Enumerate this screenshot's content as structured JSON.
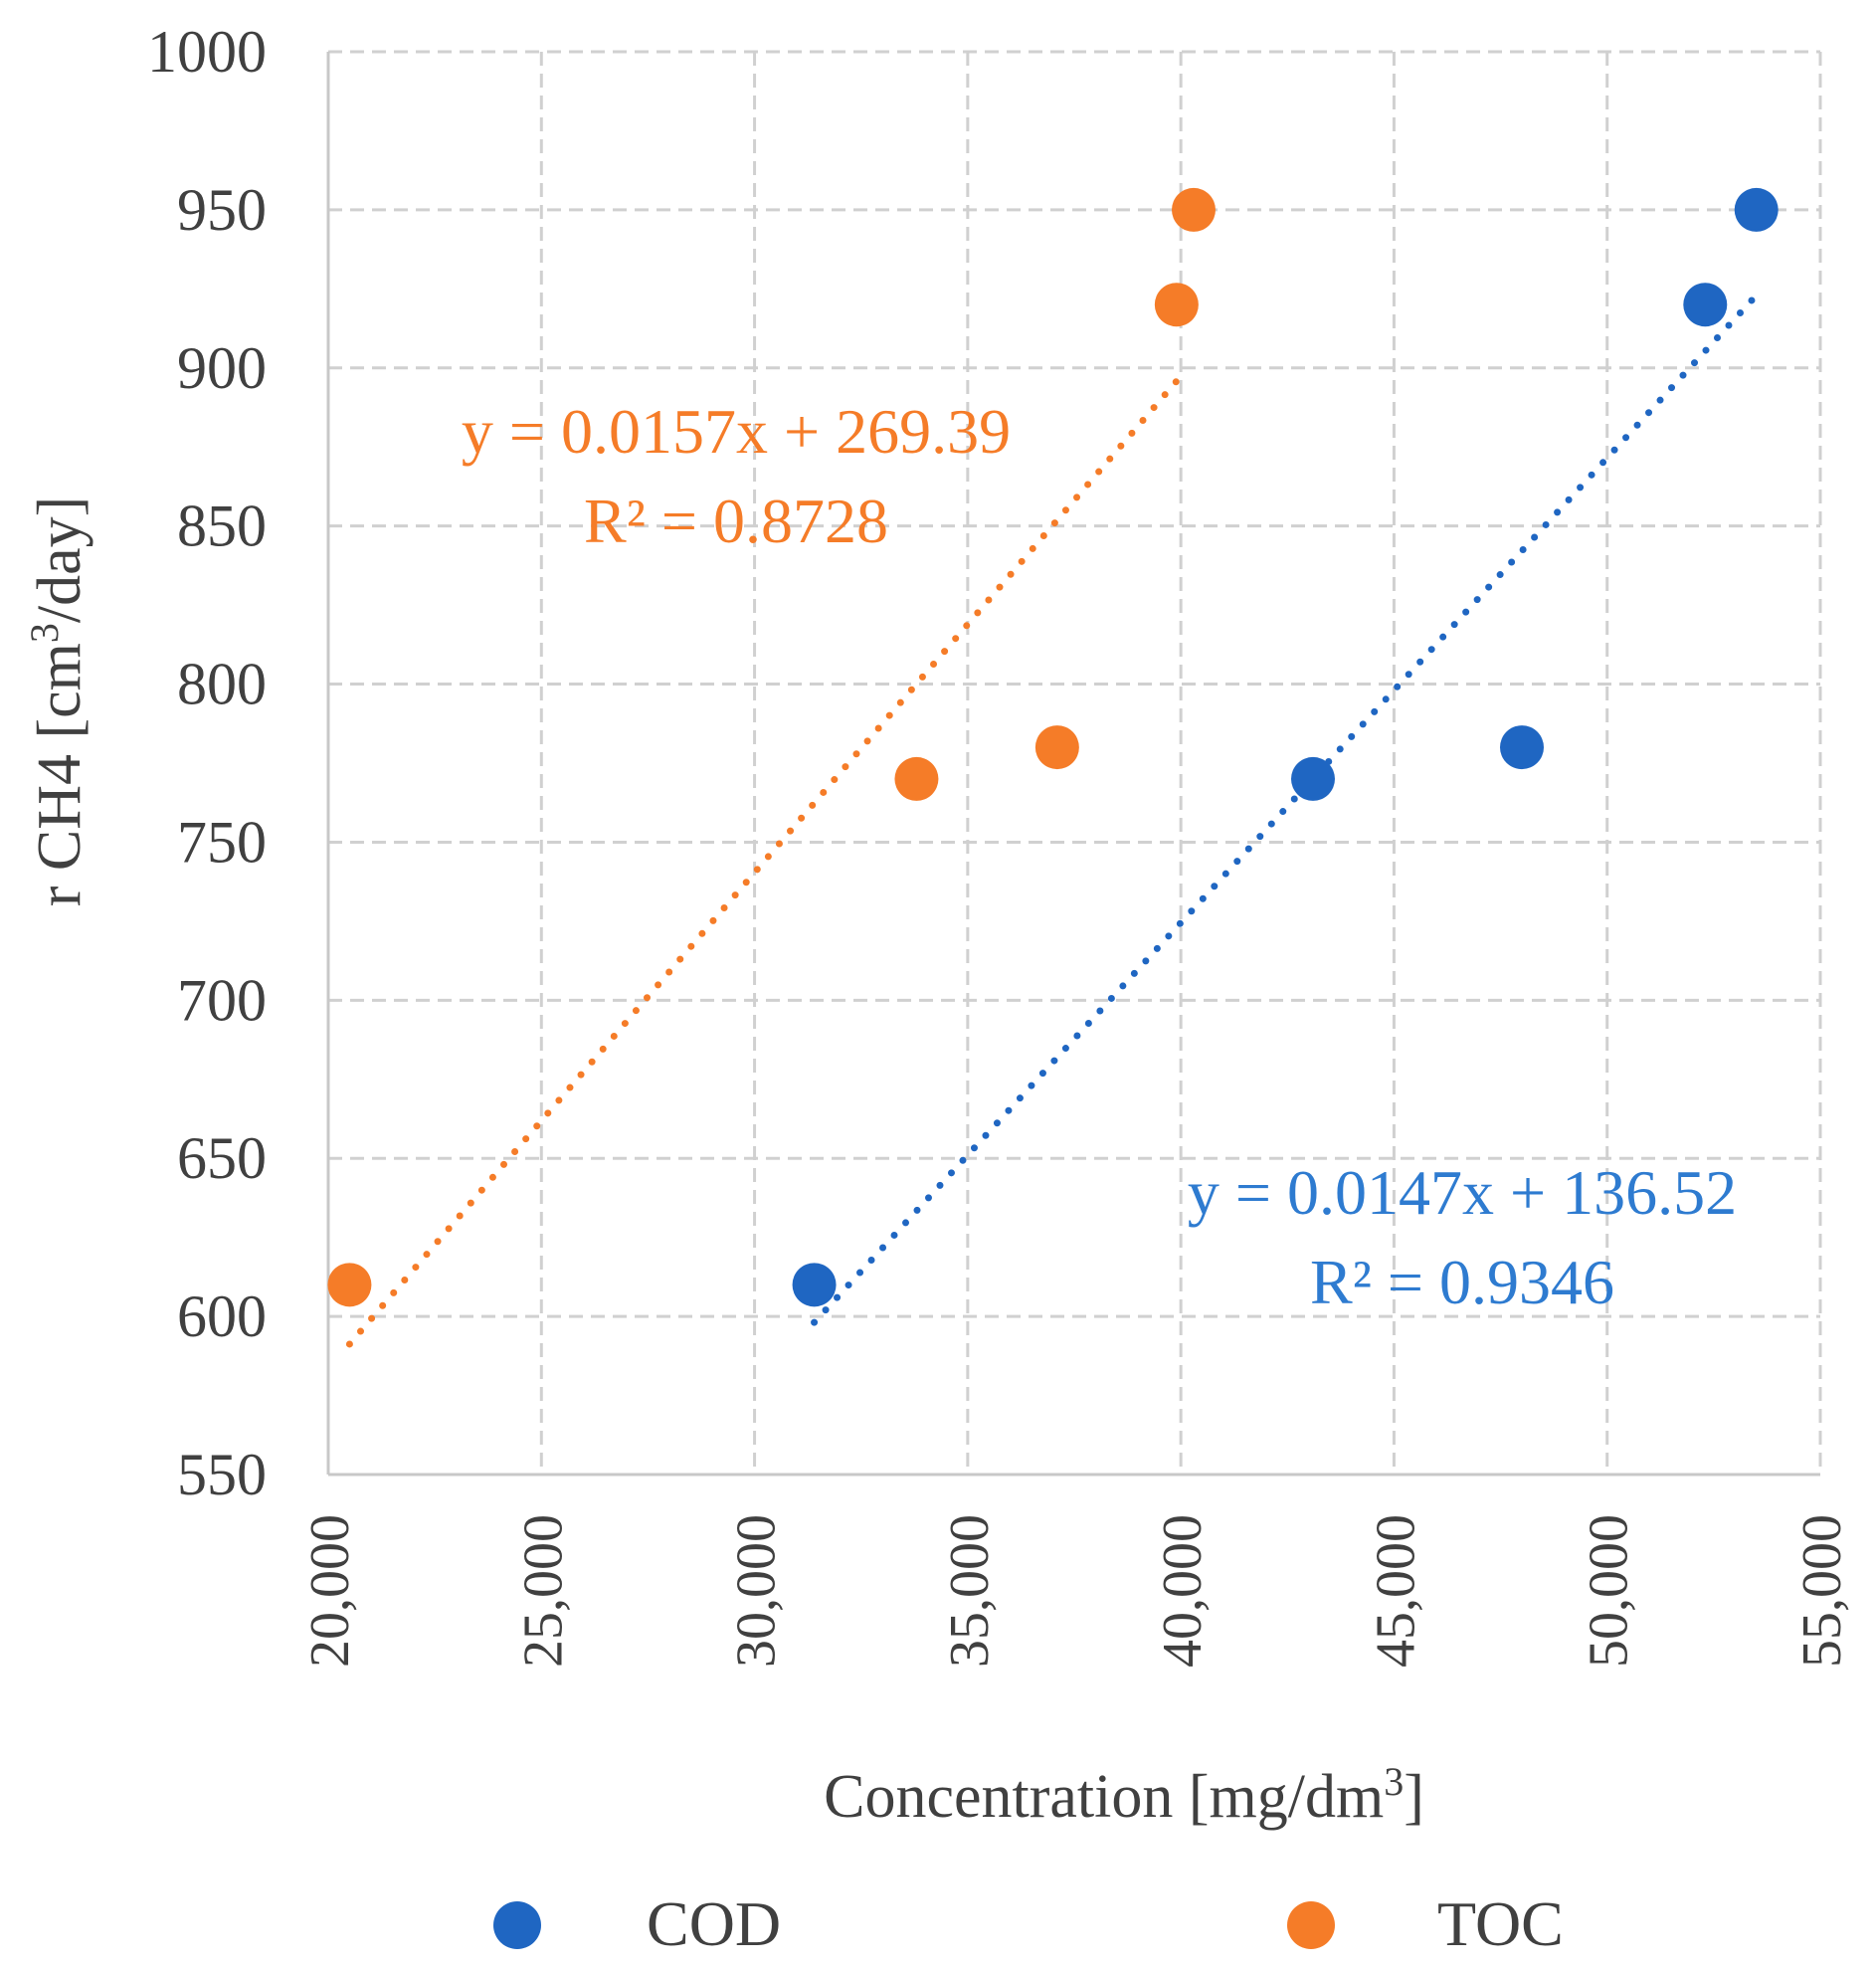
{
  "chart_data": {
    "type": "scatter",
    "title": "",
    "xlabel": "Concentration [mg/dm",
    "xlabel_sup": "3",
    "xlabel_end": "]",
    "ylabel": "r CH4 [cm",
    "ylabel_sup": "3",
    "ylabel_end": "/day]",
    "xlim": [
      20000,
      55000
    ],
    "ylim": [
      550,
      1000
    ],
    "x_ticks": [
      20000,
      25000,
      30000,
      35000,
      40000,
      45000,
      50000,
      55000
    ],
    "x_tick_labels": [
      "20,000",
      "25,000",
      "30,000",
      "35,000",
      "40,000",
      "45,000",
      "50,000",
      "55,000"
    ],
    "y_ticks": [
      550,
      600,
      650,
      700,
      750,
      800,
      850,
      900,
      950,
      1000
    ],
    "y_tick_labels": [
      "550",
      "600",
      "650",
      "700",
      "750",
      "800",
      "850",
      "900",
      "950",
      "1000"
    ],
    "grid": true,
    "legend_position": "bottom",
    "series": [
      {
        "name": "COD",
        "color": "#1f66c2",
        "points": [
          {
            "x": 31400,
            "y": 610
          },
          {
            "x": 43100,
            "y": 770
          },
          {
            "x": 48000,
            "y": 780
          },
          {
            "x": 52300,
            "y": 920
          },
          {
            "x": 53500,
            "y": 950
          }
        ],
        "trendline": {
          "slope": 0.0147,
          "intercept": 136.52,
          "x_range": [
            31400,
            53500
          ]
        },
        "equation": "y = 0.0147x + 136.52",
        "r2": "R² = 0.9346",
        "equation_color": "#2e7bd0"
      },
      {
        "name": "TOC",
        "color": "#f57c28",
        "points": [
          {
            "x": 20500,
            "y": 610
          },
          {
            "x": 33800,
            "y": 770
          },
          {
            "x": 37100,
            "y": 780
          },
          {
            "x": 39900,
            "y": 920
          },
          {
            "x": 40300,
            "y": 950
          }
        ],
        "trendline": {
          "slope": 0.0157,
          "intercept": 269.39,
          "x_range": [
            20500,
            39900
          ]
        },
        "equation": "y = 0.0157x + 269.39",
        "r2": "R² = 0.8728",
        "equation_color": "#f57c28"
      }
    ]
  }
}
